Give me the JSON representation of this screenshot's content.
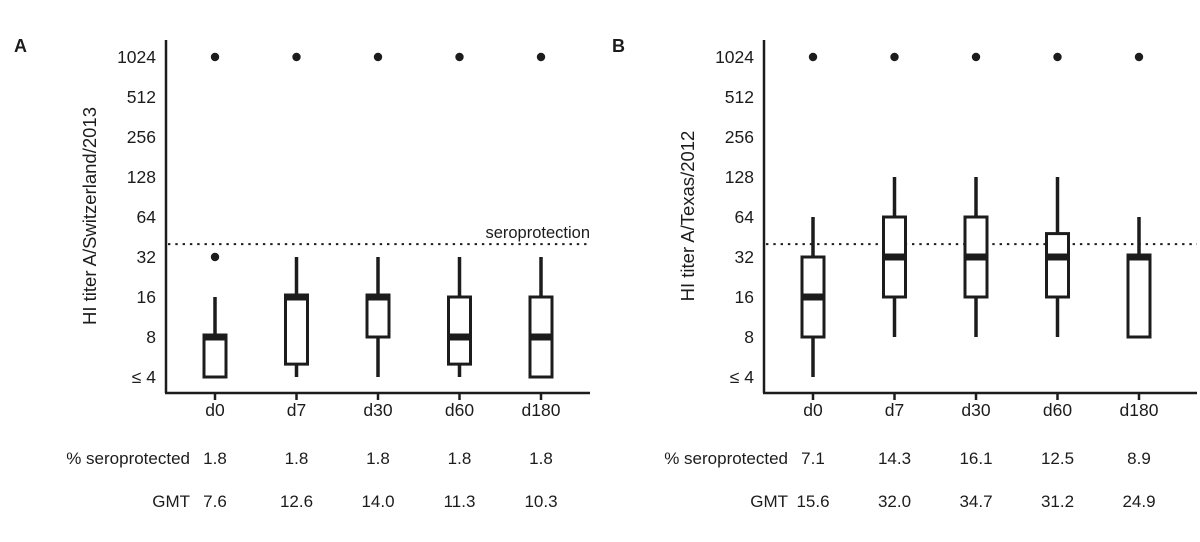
{
  "colors": {
    "ink": "#1c1c1c",
    "background": "#ffffff"
  },
  "figure": {
    "stat_rows": {
      "pct_label": "% seroprotected",
      "gmt_label": "GMT"
    }
  },
  "chart_data": [
    {
      "type": "boxplot",
      "panel_label": "A",
      "ylabel": "HI titer A/Switzerland/2013",
      "xlabel": "",
      "y_scale": "log2",
      "ylim": [
        4,
        1024
      ],
      "y_ticks": [
        {
          "label": "1024",
          "value": 1024
        },
        {
          "label": "512",
          "value": 512
        },
        {
          "label": "256",
          "value": 256
        },
        {
          "label": "128",
          "value": 128
        },
        {
          "label": "64",
          "value": 64
        },
        {
          "label": "32",
          "value": 32
        },
        {
          "label": "16",
          "value": 16
        },
        {
          "label": "8",
          "value": 8
        },
        {
          "label": "≤ 4",
          "value": 4
        }
      ],
      "threshold": {
        "value": 40,
        "label": "seroprotection",
        "show_label": true,
        "style": "dotted"
      },
      "categories": [
        "d0",
        "d7",
        "d30",
        "d60",
        "d180"
      ],
      "series": [
        {
          "category": "d0",
          "whisker_low": 4,
          "q1": 4,
          "median": 8,
          "q3": 8,
          "whisker_high": 16,
          "outliers": [
            32,
            1024
          ]
        },
        {
          "category": "d7",
          "whisker_low": 4,
          "q1": 5,
          "median": 16,
          "q3": 16,
          "whisker_high": 32,
          "outliers": [
            1024
          ]
        },
        {
          "category": "d30",
          "whisker_low": 4,
          "q1": 8,
          "median": 16,
          "q3": 16,
          "whisker_high": 32,
          "outliers": [
            1024
          ]
        },
        {
          "category": "d60",
          "whisker_low": 4,
          "q1": 5,
          "median": 8,
          "q3": 16,
          "whisker_high": 32,
          "outliers": [
            1024
          ]
        },
        {
          "category": "d180",
          "whisker_low": 4,
          "q1": 4,
          "median": 8,
          "q3": 16,
          "whisker_high": 32,
          "outliers": [
            1024
          ]
        }
      ],
      "pct_seroprotected": [
        "1.8",
        "1.8",
        "1.8",
        "1.8",
        "1.8"
      ],
      "gmt": [
        "7.6",
        "12.6",
        "14.0",
        "11.3",
        "10.3"
      ]
    },
    {
      "type": "boxplot",
      "panel_label": "B",
      "ylabel": "HI titer A/Texas/2012",
      "xlabel": "",
      "y_scale": "log2",
      "ylim": [
        4,
        1024
      ],
      "y_ticks": [
        {
          "label": "1024",
          "value": 1024
        },
        {
          "label": "512",
          "value": 512
        },
        {
          "label": "256",
          "value": 256
        },
        {
          "label": "128",
          "value": 128
        },
        {
          "label": "64",
          "value": 64
        },
        {
          "label": "32",
          "value": 32
        },
        {
          "label": "16",
          "value": 16
        },
        {
          "label": "8",
          "value": 8
        },
        {
          "label": "≤ 4",
          "value": 4
        }
      ],
      "threshold": {
        "value": 40,
        "label": "seroprotection",
        "show_label": false,
        "style": "dotted"
      },
      "categories": [
        "d0",
        "d7",
        "d30",
        "d60",
        "d180"
      ],
      "series": [
        {
          "category": "d0",
          "whisker_low": 4,
          "q1": 8,
          "median": 16,
          "q3": 32,
          "whisker_high": 64,
          "outliers": [
            1024
          ]
        },
        {
          "category": "d7",
          "whisker_low": 8,
          "q1": 16,
          "median": 32,
          "q3": 64,
          "whisker_high": 128,
          "outliers": [
            1024
          ]
        },
        {
          "category": "d30",
          "whisker_low": 8,
          "q1": 16,
          "median": 32,
          "q3": 64,
          "whisker_high": 128,
          "outliers": [
            1024
          ]
        },
        {
          "category": "d60",
          "whisker_low": 8,
          "q1": 16,
          "median": 32,
          "q3": 48,
          "whisker_high": 128,
          "outliers": [
            1024
          ]
        },
        {
          "category": "d180",
          "whisker_low": 8,
          "q1": 8,
          "median": 32,
          "q3": 32,
          "whisker_high": 64,
          "outliers": [
            1024
          ]
        }
      ],
      "pct_seroprotected": [
        "7.1",
        "14.3",
        "16.1",
        "12.5",
        "8.9"
      ],
      "gmt": [
        "15.6",
        "32.0",
        "34.7",
        "31.2",
        "24.9"
      ]
    }
  ]
}
